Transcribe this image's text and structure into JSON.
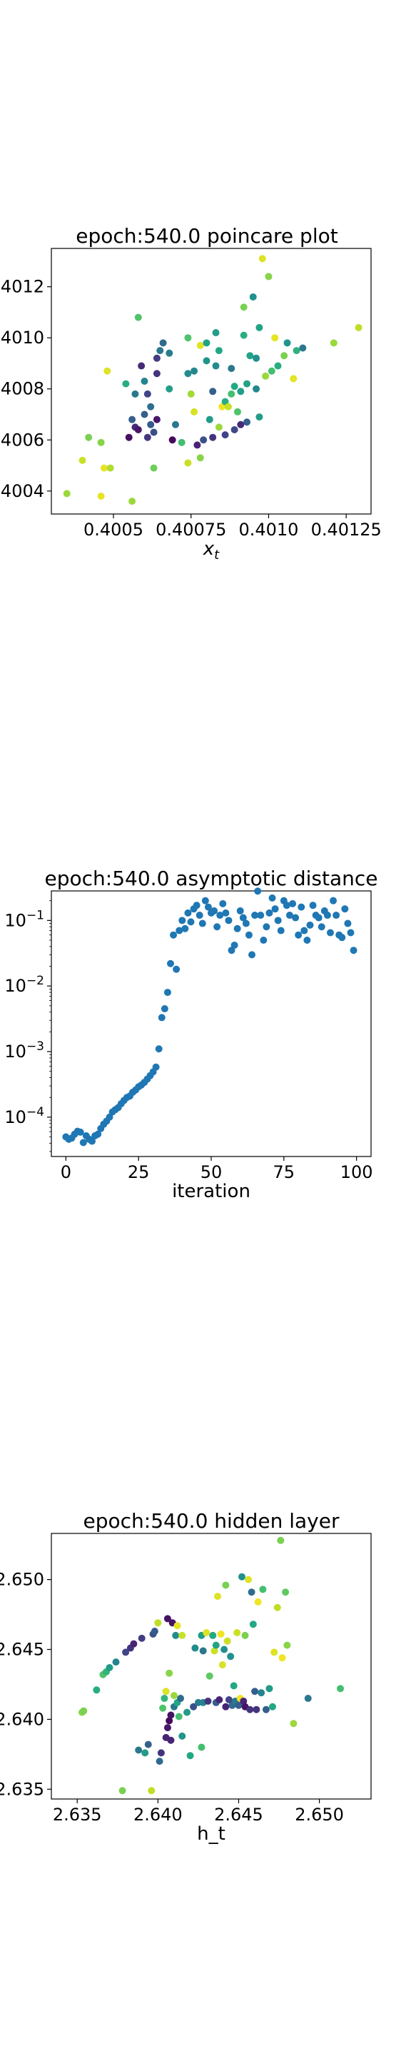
{
  "chart_data": [
    {
      "type": "scatter",
      "title": "epoch:540.0 poincare plot",
      "xlabel": "x",
      "xlabel_sub": "t",
      "ylabel": "",
      "xlim": [
        0.4003,
        0.40133
      ],
      "ylim": [
        0.40031,
        0.40135
      ],
      "x_ticks": [
        0.4005,
        0.40075,
        0.401,
        0.40125
      ],
      "x_tick_labels": [
        "0.4005",
        "0.40075",
        "0.4010",
        "0.40125"
      ],
      "y_ticks": [
        0.4004,
        0.4006,
        0.4008,
        0.401,
        0.4012
      ],
      "y_tick_labels": [
        "4004",
        "4006",
        "4008",
        "4010",
        "4012"
      ],
      "colormap": "viridis",
      "points": [
        [
          0.40035,
          0.40039,
          0.85
        ],
        [
          0.4004,
          0.40052,
          0.92
        ],
        [
          0.40042,
          0.40061,
          0.8
        ],
        [
          0.40047,
          0.40049,
          0.96
        ],
        [
          0.40049,
          0.40049,
          0.88
        ],
        [
          0.40048,
          0.40087,
          0.95
        ],
        [
          0.40046,
          0.40059,
          0.82
        ],
        [
          0.40046,
          0.40038,
          0.96
        ],
        [
          0.40056,
          0.40036,
          0.85
        ],
        [
          0.40054,
          0.40082,
          0.62
        ],
        [
          0.40055,
          0.40061,
          0.04
        ],
        [
          0.40056,
          0.40068,
          0.3
        ],
        [
          0.40057,
          0.40078,
          0.4
        ],
        [
          0.40057,
          0.40065,
          0.12
        ],
        [
          0.40058,
          0.40064,
          0.06
        ],
        [
          0.40058,
          0.40108,
          0.72
        ],
        [
          0.40059,
          0.40089,
          0.12
        ],
        [
          0.4006,
          0.4007,
          0.3
        ],
        [
          0.4006,
          0.40083,
          0.45
        ],
        [
          0.40061,
          0.40078,
          0.2
        ],
        [
          0.40062,
          0.40073,
          0.36
        ],
        [
          0.40061,
          0.40061,
          0.16
        ],
        [
          0.40062,
          0.40066,
          0.28
        ],
        [
          0.40063,
          0.40063,
          0.24
        ],
        [
          0.40064,
          0.40092,
          0.18
        ],
        [
          0.40064,
          0.40086,
          0.15
        ],
        [
          0.40064,
          0.40068,
          0.06
        ],
        [
          0.40065,
          0.40095,
          0.4
        ],
        [
          0.40063,
          0.40049,
          0.78
        ],
        [
          0.40066,
          0.40098,
          0.35
        ],
        [
          0.40068,
          0.40094,
          0.42
        ],
        [
          0.40068,
          0.4008,
          0.56
        ],
        [
          0.40069,
          0.4006,
          0.02
        ],
        [
          0.4007,
          0.40066,
          0.4
        ],
        [
          0.40072,
          0.40059,
          0.7
        ],
        [
          0.40074,
          0.40051,
          0.92
        ],
        [
          0.40074,
          0.401,
          0.72
        ],
        [
          0.40074,
          0.40086,
          0.48
        ],
        [
          0.40075,
          0.40078,
          0.86
        ],
        [
          0.40076,
          0.40071,
          0.94
        ],
        [
          0.40076,
          0.40087,
          0.46
        ],
        [
          0.40077,
          0.40058,
          0.1
        ],
        [
          0.40078,
          0.40053,
          0.82
        ],
        [
          0.40078,
          0.40097,
          0.95
        ],
        [
          0.40079,
          0.4006,
          0.25
        ],
        [
          0.4008,
          0.40091,
          0.52
        ],
        [
          0.4008,
          0.40098,
          0.58
        ],
        [
          0.40081,
          0.40068,
          0.55
        ],
        [
          0.40082,
          0.40061,
          0.15
        ],
        [
          0.40082,
          0.40079,
          0.3
        ],
        [
          0.40083,
          0.40102,
          0.55
        ],
        [
          0.40083,
          0.40089,
          0.48
        ],
        [
          0.40084,
          0.40095,
          0.6
        ],
        [
          0.40084,
          0.40065,
          0.85
        ],
        [
          0.40085,
          0.40073,
          0.98
        ],
        [
          0.40086,
          0.40062,
          0.2
        ],
        [
          0.40086,
          0.40075,
          0.62
        ],
        [
          0.40087,
          0.40073,
          0.92
        ],
        [
          0.40088,
          0.40088,
          0.4
        ],
        [
          0.40088,
          0.40078,
          0.7
        ],
        [
          0.40089,
          0.40064,
          0.22
        ],
        [
          0.40089,
          0.40081,
          0.6
        ],
        [
          0.4009,
          0.40071,
          0.72
        ],
        [
          0.40091,
          0.40066,
          0.12
        ],
        [
          0.40091,
          0.40079,
          0.56
        ],
        [
          0.40092,
          0.40101,
          0.62
        ],
        [
          0.40092,
          0.40112,
          0.8
        ],
        [
          0.40093,
          0.40067,
          0.3
        ],
        [
          0.40093,
          0.40082,
          0.58
        ],
        [
          0.40094,
          0.40093,
          0.58
        ],
        [
          0.40095,
          0.40116,
          0.5
        ],
        [
          0.40096,
          0.40092,
          0.5
        ],
        [
          0.40096,
          0.4008,
          0.46
        ],
        [
          0.40097,
          0.40069,
          0.55
        ],
        [
          0.40097,
          0.40104,
          0.58
        ],
        [
          0.40098,
          0.40131,
          0.95
        ],
        [
          0.40099,
          0.40085,
          0.85
        ],
        [
          0.401,
          0.40124,
          0.82
        ],
        [
          0.40101,
          0.40087,
          0.7
        ],
        [
          0.40102,
          0.401,
          0.96
        ],
        [
          0.40103,
          0.40089,
          0.62
        ],
        [
          0.40105,
          0.40093,
          0.8
        ],
        [
          0.40106,
          0.40098,
          0.52
        ],
        [
          0.40108,
          0.40084,
          0.96
        ],
        [
          0.40109,
          0.40095,
          0.64
        ],
        [
          0.40111,
          0.40096,
          0.4
        ],
        [
          0.40121,
          0.40098,
          0.85
        ],
        [
          0.40129,
          0.40104,
          0.9
        ]
      ]
    },
    {
      "type": "scatter",
      "title": "epoch:540.0 asymptotic distance",
      "xlabel": "iteration",
      "ylabel": "",
      "xlim": [
        -5,
        105
      ],
      "ylim_log10": [
        -4.6,
        -0.55
      ],
      "yscale": "log",
      "x_ticks": [
        0,
        25,
        50,
        75,
        100
      ],
      "x_tick_labels": [
        "0",
        "25",
        "50",
        "75",
        "100"
      ],
      "y_ticks_log10": [
        -4,
        -3,
        -2,
        -1
      ],
      "y_tick_labels": [
        "10",
        "10",
        "10",
        "10"
      ],
      "y_tick_exponents": [
        "−4",
        "−3",
        "−2",
        "−1"
      ],
      "color": "#1f77b4",
      "x": [
        0,
        1,
        2,
        3,
        4,
        5,
        6,
        7,
        8,
        9,
        10,
        11,
        12,
        13,
        14,
        15,
        16,
        17,
        18,
        19,
        20,
        21,
        22,
        23,
        24,
        25,
        26,
        27,
        28,
        29,
        30,
        31,
        32,
        33,
        34,
        35,
        36,
        37,
        38,
        39,
        40,
        41,
        42,
        43,
        44,
        45,
        46,
        47,
        48,
        49,
        50,
        51,
        52,
        53,
        54,
        55,
        56,
        57,
        58,
        59,
        60,
        61,
        62,
        63,
        64,
        65,
        66,
        67,
        68,
        69,
        70,
        71,
        72,
        73,
        74,
        75,
        76,
        77,
        78,
        79,
        80,
        81,
        82,
        83,
        84,
        85,
        86,
        87,
        88,
        89,
        90,
        91,
        92,
        93,
        94,
        95,
        96,
        97,
        98,
        99
      ],
      "y": [
        5e-05,
        4.6e-05,
        4.8e-05,
        5.5e-05,
        6.1e-05,
        5.9e-05,
        4.1e-05,
        5.2e-05,
        4.6e-05,
        4.3e-05,
        5.2e-05,
        5.5e-05,
        6.7e-05,
        7.8e-05,
        8.7e-05,
        0.0001,
        0.00012,
        0.00013,
        0.00014,
        0.00016,
        0.00018,
        0.0002,
        0.00021,
        0.00024,
        0.00026,
        0.00029,
        0.00031,
        0.00034,
        0.00038,
        0.00043,
        0.00049,
        0.00058,
        0.0011,
        0.0033,
        0.0045,
        0.008,
        0.022,
        0.06,
        0.018,
        0.07,
        0.1,
        0.075,
        0.13,
        0.095,
        0.15,
        0.17,
        0.12,
        0.09,
        0.2,
        0.16,
        0.13,
        0.14,
        0.08,
        0.12,
        0.18,
        0.13,
        0.1,
        0.035,
        0.042,
        0.075,
        0.14,
        0.11,
        0.09,
        0.06,
        0.03,
        0.12,
        0.28,
        0.12,
        0.05,
        0.08,
        0.13,
        0.22,
        0.15,
        0.1,
        0.07,
        0.2,
        0.17,
        0.12,
        0.18,
        0.11,
        0.06,
        0.16,
        0.07,
        0.05,
        0.085,
        0.17,
        0.12,
        0.11,
        0.08,
        0.14,
        0.12,
        0.065,
        0.2,
        0.12,
        0.06,
        0.055,
        0.15,
        0.09,
        0.065,
        0.035
      ]
    },
    {
      "type": "scatter",
      "title": "epoch:540.0 hidden layer",
      "xlabel": "h_t",
      "ylabel": "",
      "xlim": [
        2.6334,
        2.6532
      ],
      "ylim": [
        2.6343,
        2.6533
      ],
      "x_ticks": [
        2.635,
        2.64,
        2.645,
        2.65
      ],
      "x_tick_labels": [
        "2.635",
        "2.640",
        "2.645",
        "2.650"
      ],
      "y_ticks": [
        2.635,
        2.64,
        2.645,
        2.65
      ],
      "y_tick_labels": [
        "2.635",
        "2.640",
        "2.645",
        "2.650"
      ],
      "colormap": "viridis",
      "points": [
        [
          2.6353,
          2.6405,
          0.82
        ],
        [
          2.6354,
          2.6406,
          0.8
        ],
        [
          2.6362,
          2.6421,
          0.62
        ],
        [
          2.6366,
          2.6432,
          0.72
        ],
        [
          2.6368,
          2.6434,
          0.65
        ],
        [
          2.637,
          2.6437,
          0.55
        ],
        [
          2.6374,
          2.6441,
          0.45
        ],
        [
          2.6378,
          2.6349,
          0.8
        ],
        [
          2.638,
          2.6448,
          0.2
        ],
        [
          2.6383,
          2.6451,
          0.15
        ],
        [
          2.6385,
          2.6454,
          0.1
        ],
        [
          2.6388,
          2.6378,
          0.4
        ],
        [
          2.639,
          2.6458,
          0.18
        ],
        [
          2.6392,
          2.6376,
          0.55
        ],
        [
          2.6394,
          2.6382,
          0.3
        ],
        [
          2.6396,
          2.6349,
          0.9
        ],
        [
          2.6397,
          2.6461,
          0.25
        ],
        [
          2.6398,
          2.6463,
          0.28
        ],
        [
          2.64,
          2.6469,
          0.9
        ],
        [
          2.6401,
          2.637,
          0.35
        ],
        [
          2.6402,
          2.6376,
          0.15
        ],
        [
          2.6403,
          2.6408,
          0.72
        ],
        [
          2.6404,
          2.6415,
          0.65
        ],
        [
          2.6405,
          2.642,
          0.95
        ],
        [
          2.6405,
          2.6387,
          0.1
        ],
        [
          2.6406,
          2.6394,
          0.06
        ],
        [
          2.6406,
          2.6472,
          0.05
        ],
        [
          2.6407,
          2.6433,
          0.82
        ],
        [
          2.6407,
          2.6399,
          0.02
        ],
        [
          2.6408,
          2.6403,
          0.05
        ],
        [
          2.6408,
          2.6385,
          0.1
        ],
        [
          2.6409,
          2.6469,
          0.05
        ],
        [
          2.641,
          2.6417,
          0.85
        ],
        [
          2.641,
          2.6409,
          0.4
        ],
        [
          2.6411,
          2.646,
          0.48
        ],
        [
          2.6412,
          2.6467,
          0.96
        ],
        [
          2.6412,
          2.6412,
          0.6
        ],
        [
          2.6413,
          2.6402,
          0.7
        ],
        [
          2.6414,
          2.6415,
          0.35
        ],
        [
          2.6415,
          2.6388,
          0.52
        ],
        [
          2.6415,
          2.646,
          0.92
        ],
        [
          2.6418,
          2.6405,
          0.55
        ],
        [
          2.642,
          2.6374,
          0.6
        ],
        [
          2.6422,
          2.6409,
          0.25
        ],
        [
          2.6423,
          2.6451,
          0.48
        ],
        [
          2.6425,
          2.6412,
          0.42
        ],
        [
          2.6427,
          2.638,
          0.7
        ],
        [
          2.6427,
          2.646,
          0.55
        ],
        [
          2.6428,
          2.6449,
          0.4
        ],
        [
          2.6428,
          2.6412,
          0.45
        ],
        [
          2.643,
          2.6462,
          0.95
        ],
        [
          2.6431,
          2.6413,
          0.15
        ],
        [
          2.6432,
          2.6431,
          0.75
        ],
        [
          2.6434,
          2.646,
          0.6
        ],
        [
          2.6435,
          2.6449,
          0.92
        ],
        [
          2.6436,
          2.6412,
          0.3
        ],
        [
          2.6436,
          2.6453,
          0.58
        ],
        [
          2.6437,
          2.6488,
          0.95
        ],
        [
          2.6438,
          2.6414,
          0.1
        ],
        [
          2.6439,
          2.6461,
          0.98
        ],
        [
          2.644,
          2.6439,
          0.94
        ],
        [
          2.6441,
          2.645,
          0.5
        ],
        [
          2.6442,
          2.6409,
          0.1
        ],
        [
          2.6442,
          2.6496,
          0.8
        ],
        [
          2.6443,
          2.6456,
          0.92
        ],
        [
          2.6444,
          2.6414,
          0.2
        ],
        [
          2.6445,
          2.6445,
          0.5
        ],
        [
          2.6446,
          2.641,
          0.35
        ],
        [
          2.6447,
          2.6424,
          0.6
        ],
        [
          2.6448,
          2.6413,
          0.4
        ],
        [
          2.6449,
          2.6462,
          0.92
        ],
        [
          2.645,
          2.641,
          0.3
        ],
        [
          2.6451,
          2.6415,
          0.98
        ],
        [
          2.6452,
          2.6502,
          0.5
        ],
        [
          2.6453,
          2.6413,
          0.1
        ],
        [
          2.6454,
          2.6409,
          0.05
        ],
        [
          2.6454,
          2.646,
          0.8
        ],
        [
          2.6456,
          2.65,
          0.95
        ],
        [
          2.6457,
          2.6407,
          0.15
        ],
        [
          2.6458,
          2.6491,
          0.35
        ],
        [
          2.6459,
          2.6468,
          0.6
        ],
        [
          2.646,
          2.642,
          0.3
        ],
        [
          2.6461,
          2.6407,
          0.15
        ],
        [
          2.6462,
          2.6484,
          0.98
        ],
        [
          2.6464,
          2.6419,
          0.45
        ],
        [
          2.6465,
          2.6493,
          0.7
        ],
        [
          2.6467,
          2.6407,
          0.3
        ],
        [
          2.6469,
          2.6422,
          0.55
        ],
        [
          2.6471,
          2.6409,
          0.6
        ],
        [
          2.6472,
          2.6448,
          0.95
        ],
        [
          2.6474,
          2.648,
          0.9
        ],
        [
          2.6476,
          2.6528,
          0.8
        ],
        [
          2.6477,
          2.6444,
          0.98
        ],
        [
          2.6479,
          2.6491,
          0.75
        ],
        [
          2.648,
          2.6453,
          0.82
        ],
        [
          2.6484,
          2.6397,
          0.85
        ],
        [
          2.6493,
          2.6415,
          0.4
        ],
        [
          2.6513,
          2.6422,
          0.7
        ]
      ]
    }
  ]
}
